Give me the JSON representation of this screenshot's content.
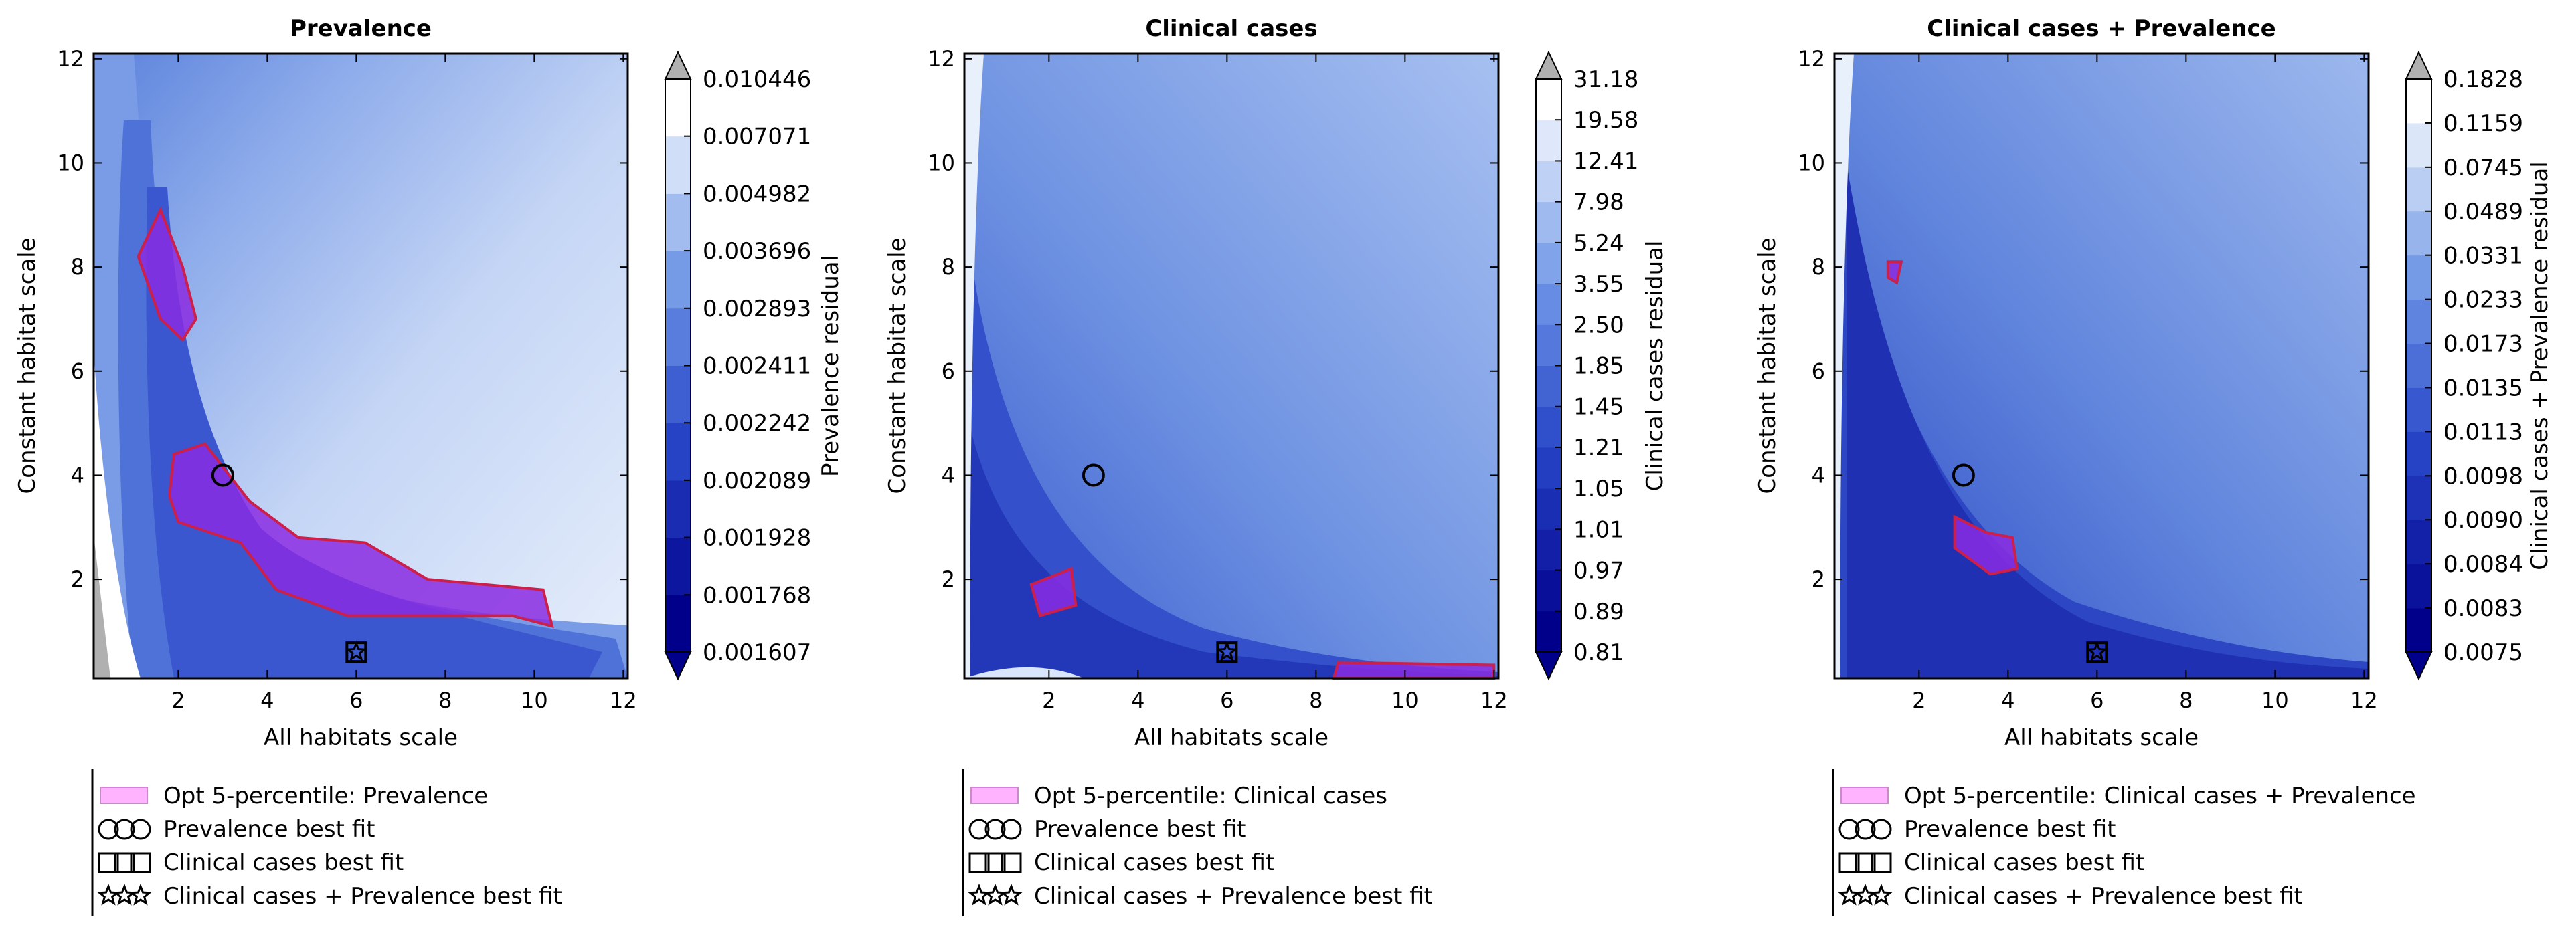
{
  "chart_data": [
    {
      "type": "heatmap",
      "subtype": "filled-contour",
      "title": "Prevalence",
      "xlabel": "All habitats scale",
      "ylabel": "Constant habitat scale",
      "xlim": [
        0.1,
        12.1
      ],
      "ylim": [
        0.1,
        12.1
      ],
      "xticks": [
        "2",
        "4",
        "6",
        "8",
        "10",
        "12"
      ],
      "yticks": [
        "2",
        "4",
        "6",
        "8",
        "10",
        "12"
      ],
      "colorbar": {
        "label": "Prevalence residual",
        "levels": [
          "0.001607",
          "0.001768",
          "0.001928",
          "0.002089",
          "0.002242",
          "0.002411",
          "0.002893",
          "0.003696",
          "0.004982",
          "0.007071",
          "0.010446"
        ]
      },
      "optimal_region": [
        [
          1.6,
          9.1
        ],
        [
          2.1,
          8.0
        ],
        [
          2.4,
          7.0
        ],
        [
          2.1,
          6.6
        ],
        [
          1.6,
          7.0
        ],
        [
          1.1,
          8.2
        ]
      ],
      "optimal_region_2": [
        [
          1.9,
          4.4
        ],
        [
          2.6,
          4.6
        ],
        [
          3.6,
          3.5
        ],
        [
          4.7,
          2.8
        ],
        [
          6.2,
          2.7
        ],
        [
          7.6,
          2.0
        ],
        [
          10.2,
          1.8
        ],
        [
          10.4,
          1.1
        ],
        [
          9.5,
          1.3
        ],
        [
          7.6,
          1.3
        ],
        [
          5.8,
          1.3
        ],
        [
          4.2,
          1.8
        ],
        [
          3.4,
          2.7
        ],
        [
          2.0,
          3.1
        ],
        [
          1.8,
          3.6
        ]
      ],
      "markers": {
        "prevalence_best_fit": {
          "x": 3.0,
          "y": 4.0
        },
        "clinical_cases_best_fit": {
          "x": 6.0,
          "y": 0.6
        },
        "clinical_cases_prevalence_best_fit": {
          "x": 6.0,
          "y": 0.6
        }
      },
      "legend": [
        {
          "marker": "patch",
          "label": "Opt 5-percentile: Prevalence"
        },
        {
          "marker": "circle",
          "label": "Prevalence best fit"
        },
        {
          "marker": "square",
          "label": "Clinical cases best fit"
        },
        {
          "marker": "star",
          "label": "Clinical cases + Prevalence best fit"
        }
      ]
    },
    {
      "type": "heatmap",
      "subtype": "filled-contour",
      "title": "Clinical cases",
      "xlabel": "All habitats scale",
      "ylabel": "Constant habitat scale",
      "xlim": [
        0.1,
        12.1
      ],
      "ylim": [
        0.1,
        12.1
      ],
      "xticks": [
        "2",
        "4",
        "6",
        "8",
        "10",
        "12"
      ],
      "yticks": [
        "2",
        "4",
        "6",
        "8",
        "10",
        "12"
      ],
      "colorbar": {
        "label": "Clinical cases residual",
        "levels": [
          "0.81",
          "0.89",
          "0.97",
          "1.01",
          "1.05",
          "1.21",
          "1.45",
          "1.85",
          "2.50",
          "3.55",
          "5.24",
          "7.98",
          "12.41",
          "19.58",
          "31.18"
        ]
      },
      "optimal_region": [
        [
          1.6,
          1.9
        ],
        [
          2.5,
          2.2
        ],
        [
          2.6,
          1.5
        ],
        [
          1.8,
          1.3
        ]
      ],
      "optimal_region_2": [
        [
          8.5,
          0.4
        ],
        [
          12.0,
          0.35
        ],
        [
          12.0,
          0.1
        ],
        [
          8.4,
          0.1
        ]
      ],
      "markers": {
        "prevalence_best_fit": {
          "x": 3.0,
          "y": 4.0
        },
        "clinical_cases_best_fit": {
          "x": 6.0,
          "y": 0.6
        },
        "clinical_cases_prevalence_best_fit": {
          "x": 6.0,
          "y": 0.6
        }
      },
      "legend": [
        {
          "marker": "patch",
          "label": "Opt 5-percentile: Clinical cases"
        },
        {
          "marker": "circle",
          "label": "Prevalence best fit"
        },
        {
          "marker": "square",
          "label": "Clinical cases best fit"
        },
        {
          "marker": "star",
          "label": "Clinical cases + Prevalence best fit"
        }
      ]
    },
    {
      "type": "heatmap",
      "subtype": "filled-contour",
      "title": "Clinical cases + Prevalence",
      "xlabel": "All habitats scale",
      "ylabel": "Constant habitat scale",
      "xlim": [
        0.1,
        12.1
      ],
      "ylim": [
        0.1,
        12.1
      ],
      "xticks": [
        "2",
        "4",
        "6",
        "8",
        "10",
        "12"
      ],
      "yticks": [
        "2",
        "4",
        "6",
        "8",
        "10",
        "12"
      ],
      "colorbar": {
        "label": "Clinical cases + Prevalence residual",
        "levels": [
          "0.0075",
          "0.0083",
          "0.0084",
          "0.0090",
          "0.0098",
          "0.0113",
          "0.0135",
          "0.0173",
          "0.0233",
          "0.0331",
          "0.0489",
          "0.0745",
          "0.1159",
          "0.1828"
        ]
      },
      "optimal_region": [
        [
          2.8,
          3.2
        ],
        [
          3.5,
          2.9
        ],
        [
          4.1,
          2.8
        ],
        [
          4.2,
          2.2
        ],
        [
          3.6,
          2.1
        ],
        [
          2.8,
          2.6
        ]
      ],
      "optimal_region_2": [
        [
          1.3,
          8.1
        ],
        [
          1.6,
          8.1
        ],
        [
          1.5,
          7.7
        ],
        [
          1.3,
          7.8
        ]
      ],
      "markers": {
        "prevalence_best_fit": {
          "x": 3.0,
          "y": 4.0
        },
        "clinical_cases_best_fit": {
          "x": 6.0,
          "y": 0.6
        },
        "clinical_cases_prevalence_best_fit": {
          "x": 6.0,
          "y": 0.6
        }
      },
      "legend": [
        {
          "marker": "patch",
          "label": "Opt 5-percentile: Clinical cases + Prevalence"
        },
        {
          "marker": "circle",
          "label": "Prevalence best fit"
        },
        {
          "marker": "square",
          "label": "Clinical cases best fit"
        },
        {
          "marker": "star",
          "label": "Clinical cases + Prevalence best fit"
        }
      ]
    }
  ],
  "colors": {
    "darkest": "#00008b",
    "lightest": "#ffffff",
    "optimal_fill": "#8a2be2",
    "optimal_edge": "#cc1f4a",
    "legend_patch": "#ffb3ff",
    "outside": "#b0b0b0"
  }
}
